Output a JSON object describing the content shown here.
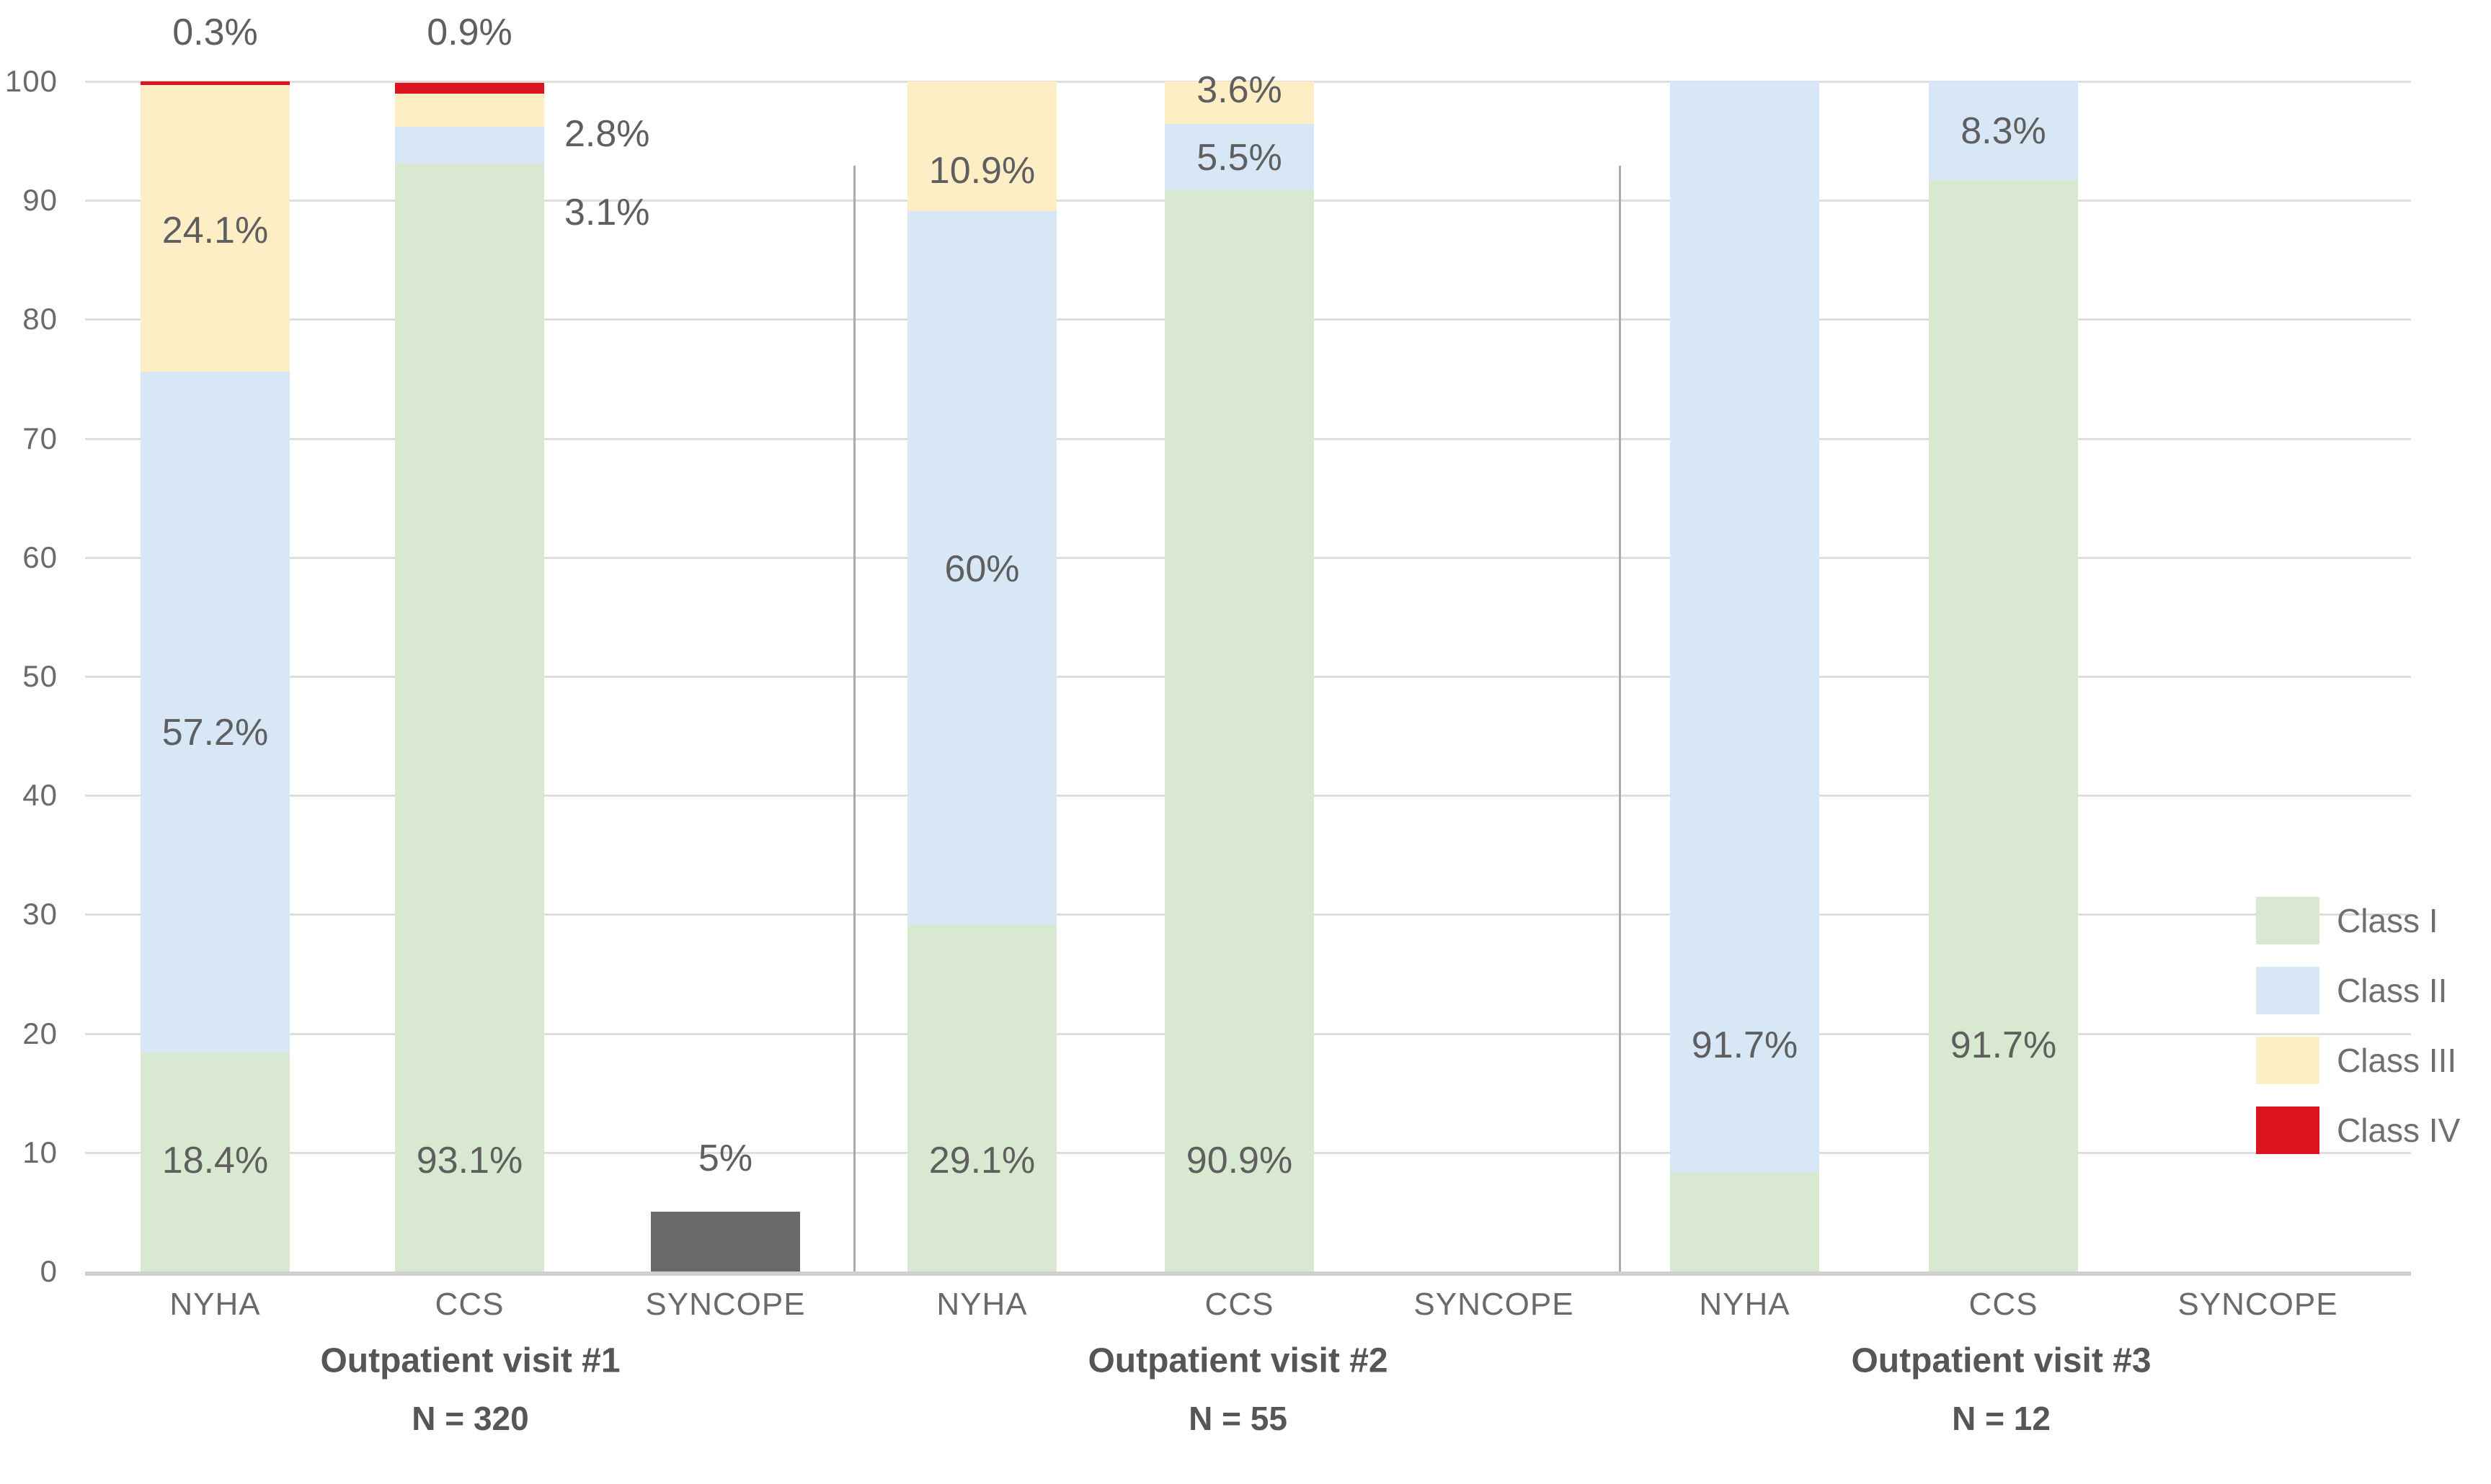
{
  "chart_data": {
    "type": "bar",
    "stacked": true,
    "orientation": "vertical",
    "title": "",
    "xlabel": "",
    "ylabel": "",
    "ylim": [
      0,
      100
    ],
    "yticks": [
      0,
      10,
      20,
      30,
      40,
      50,
      60,
      70,
      80,
      90,
      100
    ],
    "grid": true,
    "legend_position": "right",
    "legend": [
      {
        "label": "Class I",
        "color": "#d9e8d0"
      },
      {
        "label": "Class II",
        "color": "#d7e7f6"
      },
      {
        "label": "Class III",
        "color": "#fdeec6"
      },
      {
        "label": "Class IV",
        "color": "#dc1420"
      }
    ],
    "syncope_color": "#6a6a6a",
    "groups": [
      {
        "title": "Outpatient visit #1",
        "n_label": "N = 320",
        "bars": [
          {
            "category": "NYHA",
            "segments": [
              {
                "class": "Class I",
                "value": 18.4,
                "label": "18.4%",
                "label_placement": "inside",
                "label_at": 9.3
              },
              {
                "class": "Class II",
                "value": 57.2,
                "label": "57.2%",
                "label_placement": "inside",
                "label_at": 45.3
              },
              {
                "class": "Class III",
                "value": 24.1,
                "label": "24.1%",
                "label_placement": "inside",
                "label_at": 87.5
              },
              {
                "class": "Class IV",
                "value": 0.3,
                "label": "0.3%",
                "label_placement": "above-plot"
              }
            ]
          },
          {
            "category": "CCS",
            "segments": [
              {
                "class": "Class I",
                "value": 93.1,
                "label": "93.1%",
                "label_placement": "inside",
                "label_at": 9.3
              },
              {
                "class": "Class II",
                "value": 3.1,
                "label": "3.1%",
                "label_placement": "right-of-bar",
                "label_at": 89.0
              },
              {
                "class": "Class III",
                "value": 2.8,
                "label": "2.8%",
                "label_placement": "right-of-bar",
                "label_at": 95.6
              },
              {
                "class": "Class IV",
                "value": 0.9,
                "label": "0.9%",
                "label_placement": "above-plot"
              }
            ]
          },
          {
            "category": "SYNCOPE",
            "segments": [
              {
                "class": "Syncope",
                "value": 5,
                "label": "5%",
                "label_placement": "above-bar",
                "label_at": 9.5
              }
            ]
          }
        ]
      },
      {
        "title": "Outpatient visit #2",
        "n_label": "N = 55",
        "bars": [
          {
            "category": "NYHA",
            "segments": [
              {
                "class": "Class I",
                "value": 29.1,
                "label": "29.1%",
                "label_placement": "inside",
                "label_at": 9.3
              },
              {
                "class": "Class II",
                "value": 60,
                "label": "60%",
                "label_placement": "inside",
                "label_at": 59.0
              },
              {
                "class": "Class III",
                "value": 10.9,
                "label": "10.9%",
                "label_placement": "inside",
                "label_at": 92.5
              }
            ]
          },
          {
            "category": "CCS",
            "segments": [
              {
                "class": "Class I",
                "value": 90.9,
                "label": "90.9%",
                "label_placement": "inside",
                "label_at": 9.3
              },
              {
                "class": "Class II",
                "value": 5.5,
                "label": "5.5%",
                "label_placement": "inside",
                "label_at": 93.6
              },
              {
                "class": "Class III",
                "value": 3.6,
                "label": "3.6%",
                "label_placement": "inside",
                "label_at": 99.3
              }
            ]
          },
          {
            "category": "SYNCOPE",
            "segments": []
          }
        ]
      },
      {
        "title": "Outpatient visit #3",
        "n_label": "N = 12",
        "bars": [
          {
            "category": "NYHA",
            "segments": [
              {
                "class": "Class I",
                "value": 8.3
              },
              {
                "class": "Class II",
                "value": 91.7,
                "label": "91.7%",
                "label_placement": "inside",
                "label_at": 19.0
              }
            ]
          },
          {
            "category": "CCS",
            "segments": [
              {
                "class": "Class I",
                "value": 91.7,
                "label": "91.7%",
                "label_placement": "inside",
                "label_at": 19.0
              },
              {
                "class": "Class II",
                "value": 8.3,
                "label": "8.3%",
                "label_placement": "inside",
                "label_at": 95.8
              }
            ]
          },
          {
            "category": "SYNCOPE",
            "segments": []
          }
        ]
      }
    ]
  }
}
